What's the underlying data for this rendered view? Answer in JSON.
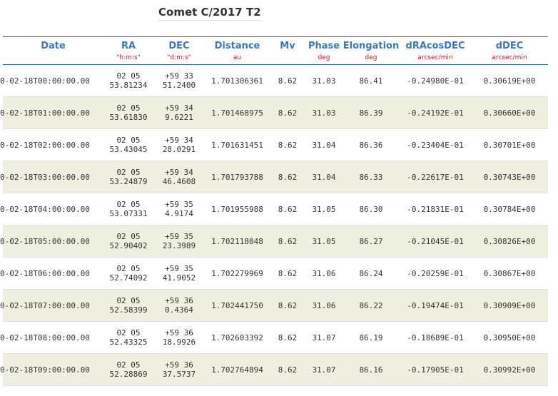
{
  "title": "Comet C/2017 T2",
  "columns": [
    {
      "label": "Date",
      "unit": ""
    },
    {
      "label": "RA",
      "unit": "\"h:m:s\""
    },
    {
      "label": "DEC",
      "unit": "\"d:m:s\""
    },
    {
      "label": "Distance",
      "unit": "au"
    },
    {
      "label": "Mv",
      "unit": ""
    },
    {
      "label": "Phase",
      "unit": "deg"
    },
    {
      "label": "Elongation",
      "unit": "deg"
    },
    {
      "label": "dRAcosDEC",
      "unit": "arcsec/min"
    },
    {
      "label": "dDEC",
      "unit": "arcsec/min"
    }
  ],
  "rows": [
    {
      "date": "0-02-18T00:00:00.00",
      "ra1": "02 05",
      "ra2": "53.81234",
      "dec1": "+59 33",
      "dec2": "51.2400",
      "dist": "1.701306361",
      "mv": "8.62",
      "phase": "31.03",
      "elong": "86.41",
      "dra": "-0.24980E-01",
      "ddec": "0.30619E+00"
    },
    {
      "date": "0-02-18T01:00:00.00",
      "ra1": "02 05",
      "ra2": "53.61830",
      "dec1": "+59 34",
      "dec2": "9.6221",
      "dist": "1.701468975",
      "mv": "8.62",
      "phase": "31.03",
      "elong": "86.39",
      "dra": "-0.24192E-01",
      "ddec": "0.30660E+00"
    },
    {
      "date": "0-02-18T02:00:00.00",
      "ra1": "02 05",
      "ra2": "53.43045",
      "dec1": "+59 34",
      "dec2": "28.0291",
      "dist": "1.701631451",
      "mv": "8.62",
      "phase": "31.04",
      "elong": "86.36",
      "dra": "-0.23404E-01",
      "ddec": "0.30701E+00"
    },
    {
      "date": "0-02-18T03:00:00.00",
      "ra1": "02 05",
      "ra2": "53.24879",
      "dec1": "+59 34",
      "dec2": "46.4608",
      "dist": "1.701793788",
      "mv": "8.62",
      "phase": "31.04",
      "elong": "86.33",
      "dra": "-0.22617E-01",
      "ddec": "0.30743E+00"
    },
    {
      "date": "0-02-18T04:00:00.00",
      "ra1": "02 05",
      "ra2": "53.07331",
      "dec1": "+59 35",
      "dec2": "4.9174",
      "dist": "1.701955988",
      "mv": "8.62",
      "phase": "31.05",
      "elong": "86.30",
      "dra": "-0.21831E-01",
      "ddec": "0.30784E+00"
    },
    {
      "date": "0-02-18T05:00:00.00",
      "ra1": "02 05",
      "ra2": "52.90402",
      "dec1": "+59 35",
      "dec2": "23.3989",
      "dist": "1.702118048",
      "mv": "8.62",
      "phase": "31.05",
      "elong": "86.27",
      "dra": "-0.21045E-01",
      "ddec": "0.30826E+00"
    },
    {
      "date": "0-02-18T06:00:00.00",
      "ra1": "02 05",
      "ra2": "52.74092",
      "dec1": "+59 35",
      "dec2": "41.9052",
      "dist": "1.702279969",
      "mv": "8.62",
      "phase": "31.06",
      "elong": "86.24",
      "dra": "-0.20259E-01",
      "ddec": "0.30867E+00"
    },
    {
      "date": "0-02-18T07:00:00.00",
      "ra1": "02 05",
      "ra2": "52.58399",
      "dec1": "+59 36",
      "dec2": "0.4364",
      "dist": "1.702441750",
      "mv": "8.62",
      "phase": "31.06",
      "elong": "86.22",
      "dra": "-0.19474E-01",
      "ddec": "0.30909E+00"
    },
    {
      "date": "0-02-18T08:00:00.00",
      "ra1": "02 05",
      "ra2": "52.43325",
      "dec1": "+59 36",
      "dec2": "18.9926",
      "dist": "1.702603392",
      "mv": "8.62",
      "phase": "31.07",
      "elong": "86.19",
      "dra": "-0.18689E-01",
      "ddec": "0.30950E+00"
    },
    {
      "date": "0-02-18T09:00:00.00",
      "ra1": "02 05",
      "ra2": "52.28869",
      "dec1": "+59 36",
      "dec2": "37.5737",
      "dist": "1.702764894",
      "mv": "8.62",
      "phase": "31.07",
      "elong": "86.16",
      "dra": "-0.17905E-01",
      "ddec": "0.30992E+00"
    }
  ]
}
